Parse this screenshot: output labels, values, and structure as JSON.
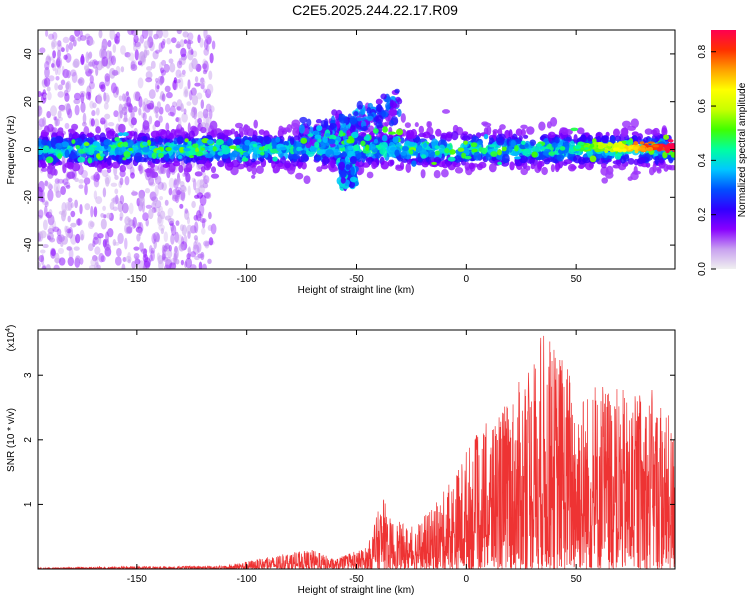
{
  "title": "C2E5.2025.244.22.17.R09",
  "colors": {
    "spectrogram_bg": "#ffffff",
    "snr_line": "#ee3333",
    "axis": "#000000"
  },
  "chart_data": [
    {
      "type": "heatmap",
      "name": "spectrogram",
      "xlabel": "Height of straight line (km)",
      "ylabel": "Frequency (Hz)",
      "xlim": [
        -195,
        95
      ],
      "ylim": [
        -50,
        50
      ],
      "xticks": [
        -150,
        -100,
        -50,
        0,
        50
      ],
      "yticks": [
        -40,
        -20,
        0,
        20,
        40
      ],
      "colorbar": {
        "label": "Normalized spectral amplitude",
        "range": [
          0,
          0.88
        ],
        "ticks": [
          0.0,
          0.2,
          0.4,
          0.6,
          0.8
        ],
        "colormap": [
          "#f0f0f0",
          "#c8a0f0",
          "#8800ff",
          "#3000ff",
          "#0050ff",
          "#00c8ff",
          "#00ffa0",
          "#40ff00",
          "#c8ff00",
          "#ffff00",
          "#ffa000",
          "#ff3000",
          "#ff0050"
        ]
      },
      "features": [
        {
          "description": "noise scatter",
          "x_range": [
            -195,
            -115
          ],
          "freq_range": [
            -50,
            50
          ],
          "amplitude": 0.1
        },
        {
          "description": "main band",
          "x_range": [
            -195,
            95
          ],
          "freq_center": 0,
          "freq_halfwidth": 6,
          "amplitude": 0.3
        },
        {
          "description": "rising branch",
          "x_range": [
            -75,
            -30
          ],
          "freq_range": [
            5,
            25
          ],
          "amplitude": 0.25
        },
        {
          "description": "descending streak",
          "x_range": [
            -58,
            -50
          ],
          "freq_range": [
            -16,
            -4
          ],
          "amplitude": 0.3
        },
        {
          "description": "strong line",
          "x_range": [
            50,
            95
          ],
          "freq_center": 1,
          "amplitude": 0.85
        }
      ]
    },
    {
      "type": "line",
      "name": "snr",
      "xlabel": "Height of straight line (km)",
      "ylabel": "SNR (10 * v/v)",
      "yscale_label": "(x10",
      "yscale_exponent": "4",
      "xlim": [
        -195,
        95
      ],
      "ylim": [
        0,
        3.7
      ],
      "xticks": [
        -150,
        -100,
        -50,
        0,
        50
      ],
      "yticks": [
        1,
        2,
        3
      ],
      "envelope": [
        {
          "x": -195,
          "y": 0.02
        },
        {
          "x": -150,
          "y": 0.04
        },
        {
          "x": -110,
          "y": 0.05
        },
        {
          "x": -100,
          "y": 0.12
        },
        {
          "x": -80,
          "y": 0.25
        },
        {
          "x": -70,
          "y": 0.3
        },
        {
          "x": -60,
          "y": 0.15
        },
        {
          "x": -45,
          "y": 0.35
        },
        {
          "x": -38,
          "y": 1.15
        },
        {
          "x": -35,
          "y": 0.8
        },
        {
          "x": -25,
          "y": 0.65
        },
        {
          "x": -15,
          "y": 0.95
        },
        {
          "x": -5,
          "y": 1.5
        },
        {
          "x": 0,
          "y": 1.9
        },
        {
          "x": 10,
          "y": 2.3
        },
        {
          "x": 20,
          "y": 2.7
        },
        {
          "x": 30,
          "y": 3.2
        },
        {
          "x": 35,
          "y": 3.7
        },
        {
          "x": 45,
          "y": 3.3
        },
        {
          "x": 55,
          "y": 2.8
        },
        {
          "x": 65,
          "y": 2.9
        },
        {
          "x": 75,
          "y": 2.7
        },
        {
          "x": 85,
          "y": 2.8
        },
        {
          "x": 95,
          "y": 2.2
        }
      ]
    }
  ]
}
